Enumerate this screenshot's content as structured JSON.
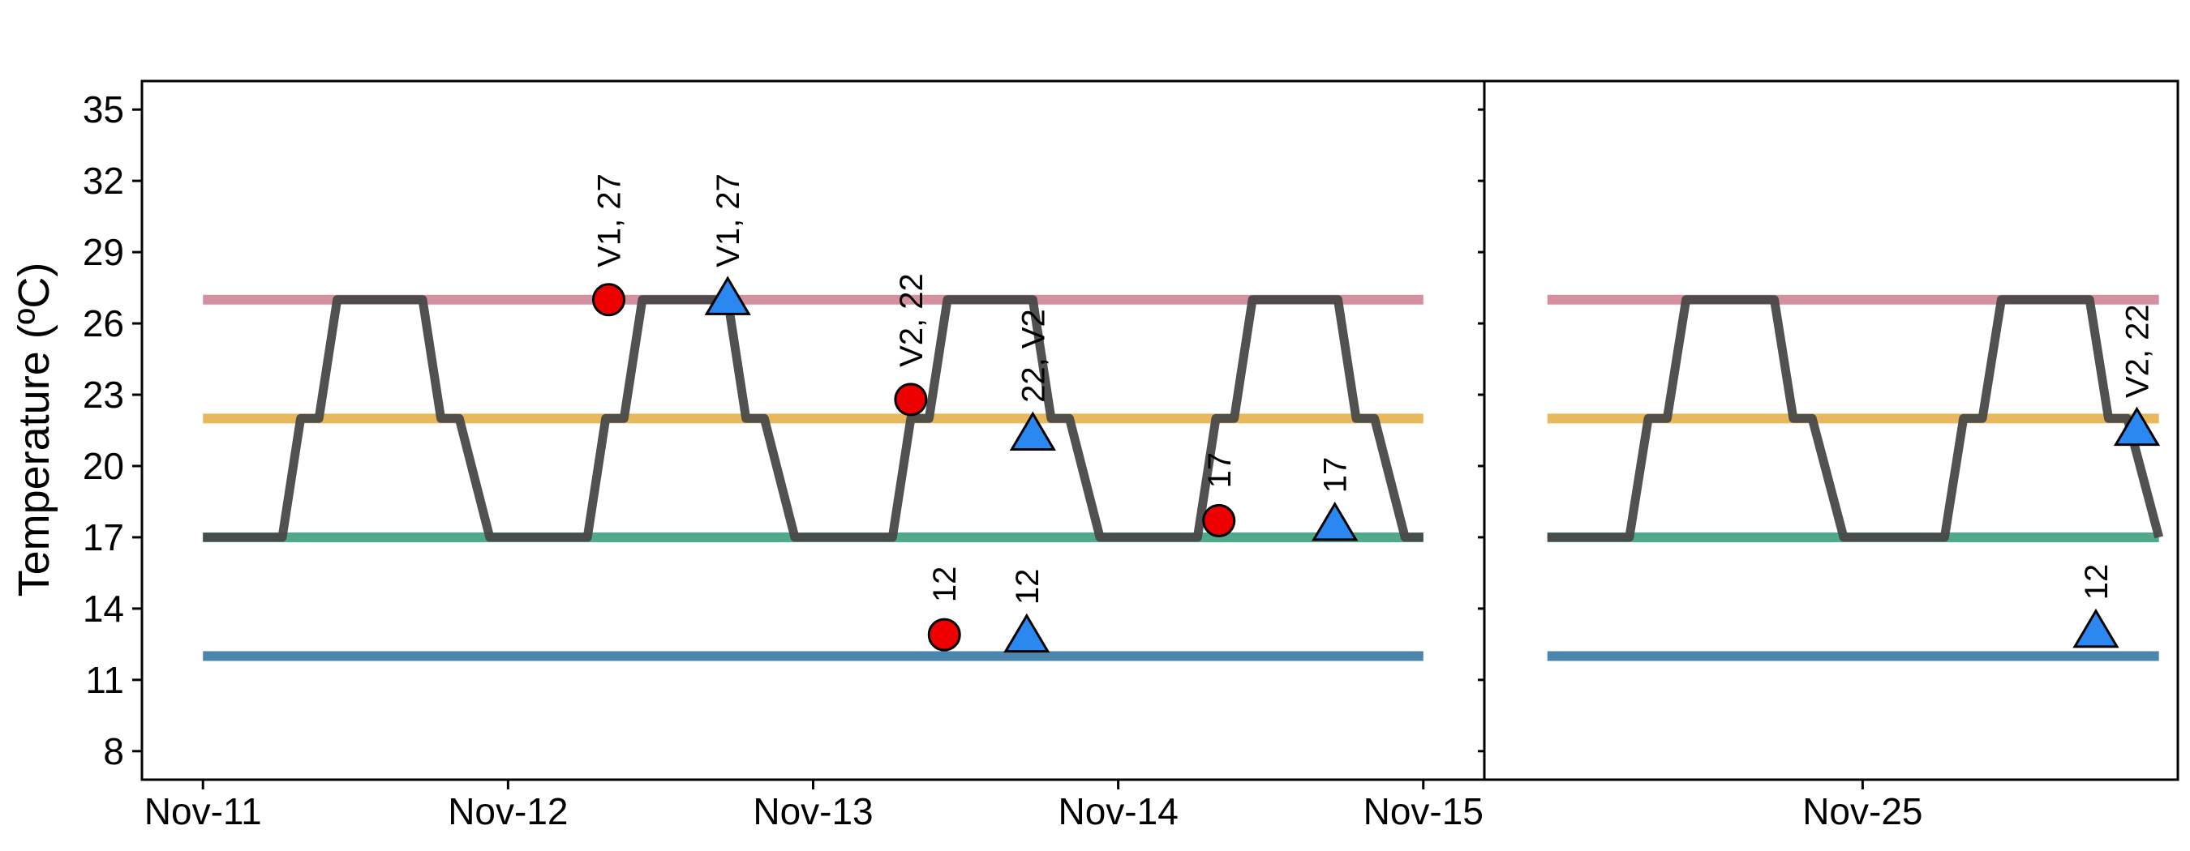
{
  "chart_data": {
    "type": "line",
    "ylabel": "Temperature (ºC)",
    "ylim": [
      6.8,
      36.2
    ],
    "y_ticks": [
      8,
      11,
      14,
      17,
      20,
      23,
      26,
      29,
      32,
      35
    ],
    "grid": false,
    "colors": {
      "ref_27": "#d4909f",
      "ref_22": "#e8b95c",
      "ref_17": "#4faa8a",
      "ref_12": "#4a86ad",
      "profile": "#484848",
      "circle": "#ee0000",
      "triangle": "#2a88f0"
    },
    "reference_lines": [
      27,
      22,
      17,
      12
    ],
    "panels": [
      {
        "xlim": [
          -0.2,
          4.2
        ],
        "x_ticks": [
          {
            "x": 0,
            "label": "Nov-11"
          },
          {
            "x": 1,
            "label": "Nov-12"
          },
          {
            "x": 2,
            "label": "Nov-13"
          },
          {
            "x": 3,
            "label": "Nov-14"
          },
          {
            "x": 4,
            "label": "Nov-15"
          }
        ],
        "series": [
          {
            "shape": "line",
            "x": [
              0,
              0.26,
              0.32,
              0.38,
              0.44,
              0.72,
              0.78,
              0.84,
              0.94,
              1.26,
              1.32,
              1.38,
              1.44,
              1.72,
              1.78,
              1.84,
              1.94,
              2.26,
              2.32,
              2.38,
              2.44,
              2.72,
              2.78,
              2.84,
              2.94,
              3.26,
              3.32,
              3.38,
              3.44,
              3.72,
              3.78,
              3.84,
              3.94,
              4.0
            ],
            "y": [
              17,
              17,
              22,
              22,
              27,
              27,
              22,
              22,
              17,
              17,
              22,
              22,
              27,
              27,
              22,
              22,
              17,
              17,
              22,
              22,
              27,
              27,
              22,
              22,
              17,
              17,
              22,
              22,
              27,
              27,
              22,
              22,
              17,
              17
            ]
          },
          {
            "shape": "circle",
            "points": [
              {
                "x": 1.33,
                "y": 27,
                "label": "V1, 27"
              },
              {
                "x": 2.32,
                "y": 22.8,
                "label": "V2, 22"
              },
              {
                "x": 2.43,
                "y": 12.9,
                "label": "12"
              },
              {
                "x": 3.33,
                "y": 17.7,
                "label": "17"
              }
            ]
          },
          {
            "shape": "triangle",
            "points": [
              {
                "x": 1.72,
                "y": 27,
                "label": "V1, 27"
              },
              {
                "x": 2.72,
                "y": 21.3,
                "label": "22, V2"
              },
              {
                "x": 2.7,
                "y": 12.8,
                "label": "12"
              },
              {
                "x": 3.71,
                "y": 17.5,
                "label": "17"
              }
            ]
          }
        ]
      },
      {
        "xlim": [
          -0.2,
          2.0
        ],
        "x_ticks": [
          {
            "x": 1,
            "label": "Nov-25"
          }
        ],
        "series": [
          {
            "shape": "line",
            "x": [
              0,
              0.26,
              0.32,
              0.38,
              0.44,
              0.72,
              0.78,
              0.84,
              0.94,
              1.26,
              1.32,
              1.38,
              1.44,
              1.72,
              1.78,
              1.84,
              1.94
            ],
            "y": [
              17,
              17,
              22,
              22,
              27,
              27,
              22,
              22,
              17,
              17,
              22,
              22,
              27,
              27,
              22,
              22,
              17
            ]
          },
          {
            "shape": "triangle",
            "points": [
              {
                "x": 1.87,
                "y": 21.5,
                "label": "V2, 22"
              },
              {
                "x": 1.74,
                "y": 13.0,
                "label": "12"
              }
            ]
          }
        ]
      }
    ]
  }
}
